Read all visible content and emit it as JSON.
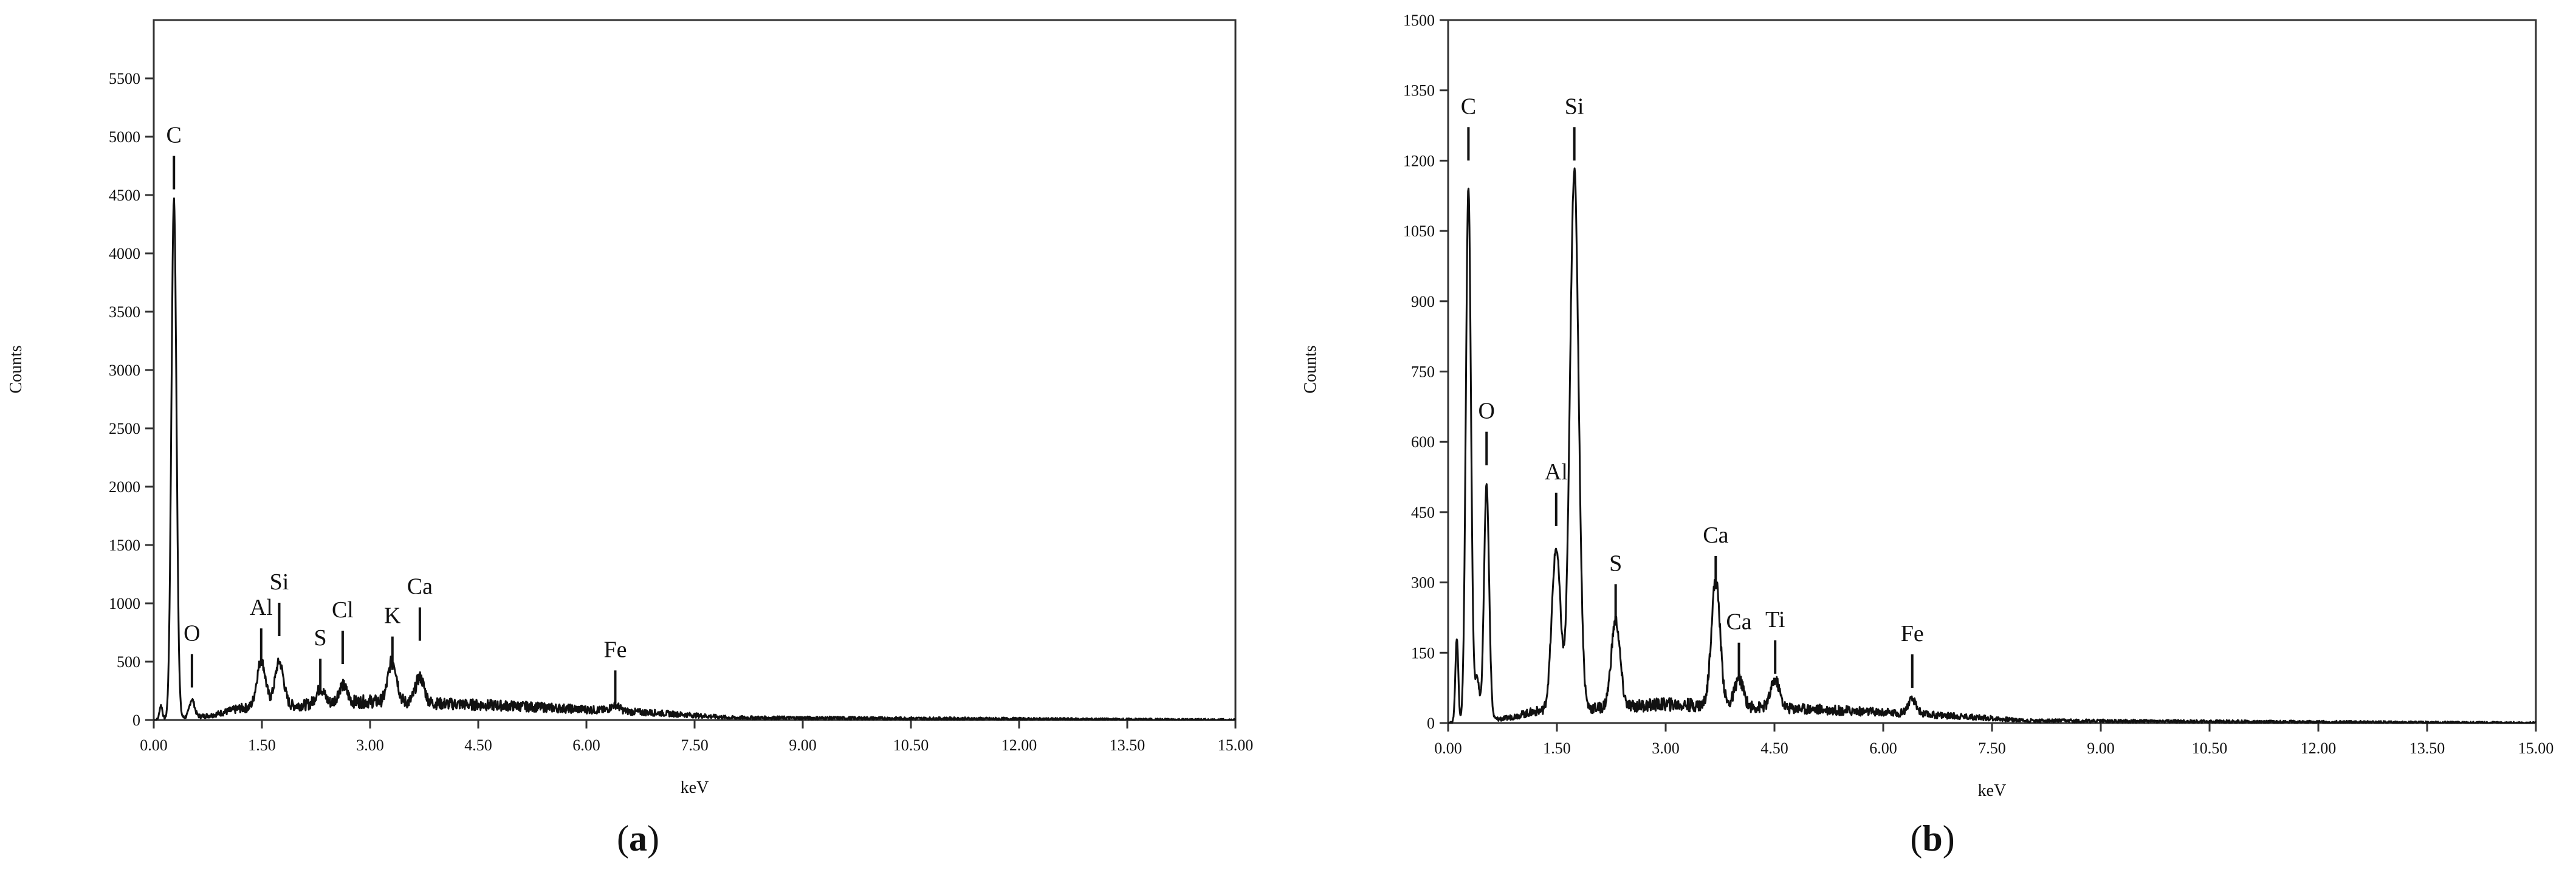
{
  "chart_data": [
    {
      "panel_label": "a",
      "type": "line",
      "xlabel": "keV",
      "ylabel": "Counts",
      "xlim": [
        0,
        15
      ],
      "ylim": [
        0,
        6000
      ],
      "x_ticks": [
        "0.00",
        "1.50",
        "3.00",
        "4.50",
        "6.00",
        "7.50",
        "9.00",
        "10.50",
        "12.00",
        "13.50",
        "15.00"
      ],
      "y_ticks": [
        "0",
        "500",
        "1000",
        "1500",
        "2000",
        "2500",
        "3000",
        "3500",
        "4000",
        "4500",
        "5000",
        "5500"
      ],
      "peaks": [
        {
          "label": "C",
          "x": 0.28,
          "y": 4450,
          "label_y": 4950
        },
        {
          "label": "O",
          "x": 0.53,
          "y": 150,
          "label_y": 680
        },
        {
          "label": "Al",
          "x": 1.49,
          "y": 400,
          "label_y": 900
        },
        {
          "label": "Si",
          "x": 1.74,
          "y": 380,
          "label_y": 1120
        },
        {
          "label": "S",
          "x": 2.31,
          "y": 130,
          "label_y": 640
        },
        {
          "label": "Cl",
          "x": 2.62,
          "y": 150,
          "label_y": 880
        },
        {
          "label": "K",
          "x": 3.31,
          "y": 360,
          "label_y": 830
        },
        {
          "label": "Ca",
          "x": 3.69,
          "y": 220,
          "label_y": 1080
        },
        {
          "label": "Fe",
          "x": 6.4,
          "y": 50,
          "label_y": 540
        }
      ],
      "baseline": [
        [
          0.0,
          0
        ],
        [
          0.8,
          10
        ],
        [
          1.2,
          25
        ],
        [
          3.0,
          40
        ],
        [
          5.0,
          30
        ],
        [
          7.0,
          15
        ],
        [
          8.0,
          5
        ],
        [
          15.0,
          0
        ]
      ],
      "extra_peaks": [
        {
          "x": 0.1,
          "y": 120,
          "w": 0.02
        }
      ]
    },
    {
      "panel_label": "b",
      "type": "line",
      "xlabel": "keV",
      "ylabel": "Counts",
      "xlim": [
        0,
        15
      ],
      "ylim": [
        0,
        1500
      ],
      "x_ticks": [
        "0.00",
        "1.50",
        "3.00",
        "4.50",
        "6.00",
        "7.50",
        "9.00",
        "10.50",
        "12.00",
        "13.50",
        "15.00"
      ],
      "y_ticks": [
        "0",
        "150",
        "300",
        "450",
        "600",
        "750",
        "900",
        "1050",
        "1200",
        "1350",
        "1500"
      ],
      "peaks": [
        {
          "label": "C",
          "x": 0.28,
          "y": 1140,
          "label_y": 1300
        },
        {
          "label": "O",
          "x": 0.53,
          "y": 500,
          "label_y": 650
        },
        {
          "label": "Si",
          "x": 1.74,
          "y": 1150,
          "label_y": 1300
        },
        {
          "label": "Al",
          "x": 1.49,
          "y": 345,
          "label_y": 520
        },
        {
          "label": "S",
          "x": 2.31,
          "y": 185,
          "label_y": 325
        },
        {
          "label": "Ca",
          "x": 3.69,
          "y": 270,
          "label_y": 385
        },
        {
          "label": "Ca",
          "x": 4.01,
          "y": 60,
          "label_y": 200
        },
        {
          "label": "Ti",
          "x": 4.51,
          "y": 60,
          "label_y": 205
        },
        {
          "label": "Fe",
          "x": 6.4,
          "y": 30,
          "label_y": 175
        }
      ],
      "baseline": [
        [
          0.0,
          0
        ],
        [
          0.8,
          10
        ],
        [
          1.2,
          25
        ],
        [
          3.0,
          40
        ],
        [
          5.0,
          30
        ],
        [
          7.0,
          15
        ],
        [
          8.0,
          5
        ],
        [
          15.0,
          0
        ]
      ],
      "extra_peaks": [
        {
          "x": 0.12,
          "y": 180,
          "w": 0.02
        },
        {
          "x": 0.4,
          "y": 90,
          "w": 0.03
        }
      ]
    }
  ],
  "captions": [
    {
      "open": "(",
      "letter": "a",
      "close": ")"
    },
    {
      "open": "(",
      "letter": "b",
      "close": ")"
    }
  ]
}
